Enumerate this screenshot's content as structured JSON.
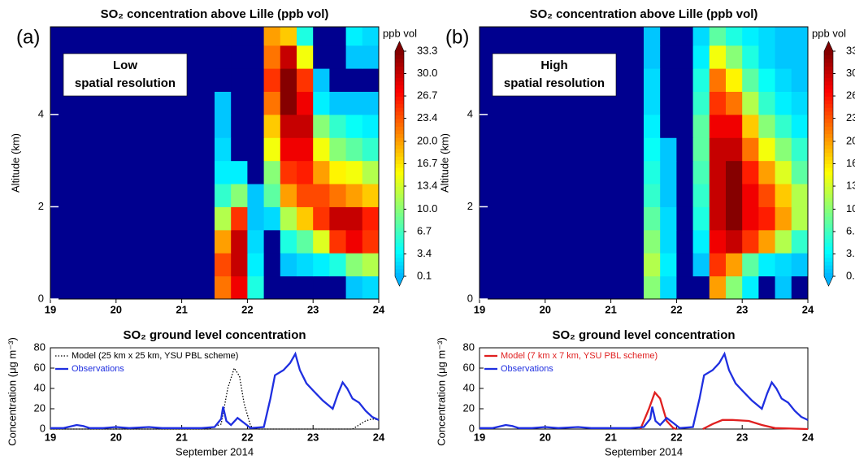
{
  "chart_data": [
    {
      "type": "heatmap",
      "title": "SO₂ concentration above Lille (ppb vol)",
      "panel_label": "(a)",
      "annotation": [
        "Low",
        "spatial resolution"
      ],
      "ylabel": "Altitude (km)",
      "x": [
        21.625,
        21.875,
        22.125,
        22.375,
        22.625,
        22.875,
        23.125,
        23.375,
        23.625,
        23.875
      ],
      "y": [
        0.25,
        0.75,
        1.25,
        1.75,
        2.25,
        2.75,
        3.25,
        3.75,
        4.25,
        4.75,
        5.25,
        5.75
      ],
      "z": [
        [
          22,
          28,
          5,
          0,
          0,
          0,
          0,
          0,
          1,
          2
        ],
        [
          24,
          30,
          3,
          0,
          1,
          2,
          3,
          5,
          10,
          12
        ],
        [
          20,
          30,
          2,
          0,
          5,
          8,
          14,
          25,
          28,
          25
        ],
        [
          12,
          25,
          1,
          2,
          12,
          18,
          25,
          30,
          30,
          26
        ],
        [
          6,
          10,
          1,
          8,
          20,
          24,
          24,
          22,
          20,
          18
        ],
        [
          3,
          3,
          0,
          10,
          25,
          26,
          20,
          16,
          15,
          12
        ],
        [
          2,
          0,
          0,
          15,
          28,
          28,
          15,
          10,
          8,
          6
        ],
        [
          1,
          0,
          0,
          18,
          30,
          30,
          10,
          6,
          4,
          3
        ],
        [
          1,
          0,
          0,
          22,
          33,
          28,
          3,
          1,
          1,
          1
        ],
        [
          0,
          0,
          0,
          25,
          33,
          25,
          1,
          0,
          0,
          0
        ],
        [
          0,
          0,
          0,
          22,
          30,
          15,
          0,
          0,
          1,
          1
        ],
        [
          0,
          0,
          0,
          20,
          18,
          5,
          0,
          0,
          3,
          2
        ]
      ],
      "xlim": [
        19,
        24
      ],
      "xticks": [
        19,
        20,
        21,
        22,
        23,
        24
      ],
      "ylim": [
        0,
        5.9
      ],
      "yticks": [
        0,
        2,
        4
      ],
      "colorbar": {
        "label": "ppb vol",
        "lim": [
          0.1,
          33.3
        ],
        "ticks": [
          0.1,
          3.4,
          6.7,
          {
            "value": 10,
            "label": "10.0"
          },
          13.4,
          16.7,
          {
            "value": 20,
            "label": "20.0"
          },
          23.4,
          26.7,
          {
            "value": 30,
            "label": "30.0"
          },
          33.3
        ]
      }
    },
    {
      "type": "line",
      "title": "SO₂ ground level concentration",
      "xlabel": "September 2014",
      "ylabel": "Concentration (μg m⁻³)",
      "xlim": [
        19,
        24
      ],
      "xticks": [
        19,
        20,
        21,
        22,
        23,
        24
      ],
      "ylim": [
        0,
        80
      ],
      "yticks": [
        0,
        20,
        40,
        60,
        80
      ],
      "legend": "upper left",
      "series": [
        {
          "name": "Model (25 km x 25 km, YSU PBL scheme)",
          "color": "#000000",
          "dash": "dotted",
          "x": [
            19.0,
            21.4,
            21.6,
            21.7,
            21.8,
            21.88,
            21.95,
            22.05,
            22.15,
            23.6,
            23.8,
            23.9,
            24.0
          ],
          "values": [
            0,
            0,
            5,
            40,
            60,
            52,
            25,
            3,
            0,
            0,
            8,
            10,
            9
          ]
        },
        {
          "name": "Observations",
          "color": "#1f2fe0",
          "x": [
            19.0,
            19.2,
            19.4,
            19.5,
            19.6,
            19.8,
            20.0,
            20.2,
            20.5,
            20.7,
            21.0,
            21.3,
            21.5,
            21.6,
            21.63,
            21.68,
            21.75,
            21.85,
            21.95,
            22.05,
            22.25,
            22.35,
            22.42,
            22.55,
            22.65,
            22.73,
            22.8,
            22.9,
            23.0,
            23.15,
            23.3,
            23.38,
            23.45,
            23.52,
            23.6,
            23.7,
            23.8,
            23.9,
            24.0
          ],
          "values": [
            1,
            1,
            4,
            3,
            1,
            1,
            2,
            1,
            2,
            1,
            1,
            1,
            2,
            10,
            22,
            8,
            4,
            11,
            6,
            1,
            2,
            30,
            53,
            58,
            65,
            74,
            58,
            45,
            38,
            28,
            20,
            35,
            46,
            40,
            30,
            26,
            18,
            12,
            9
          ]
        }
      ]
    },
    {
      "type": "heatmap",
      "title": "SO₂ concentration above Lille (ppb vol)",
      "panel_label": "(b)",
      "annotation": [
        "High",
        "spatial resolution"
      ],
      "ylabel": "Altitude (km)",
      "x": [
        21.625,
        21.875,
        22.125,
        22.375,
        22.625,
        22.875,
        23.125,
        23.375,
        23.625,
        23.875
      ],
      "y": [
        0.25,
        0.75,
        1.25,
        1.75,
        2.25,
        2.75,
        3.25,
        3.75,
        4.25,
        4.75,
        5.25,
        5.75
      ],
      "z": [
        [
          10,
          2,
          0,
          0,
          20,
          10,
          3,
          0,
          1,
          0
        ],
        [
          12,
          3,
          0,
          1,
          25,
          20,
          8,
          3,
          2,
          1
        ],
        [
          10,
          2,
          0,
          3,
          28,
          30,
          25,
          20,
          12,
          6
        ],
        [
          8,
          2,
          0,
          5,
          30,
          33,
          28,
          26,
          20,
          12
        ],
        [
          6,
          1,
          0,
          6,
          30,
          33,
          28,
          24,
          18,
          12
        ],
        [
          5,
          1,
          0,
          7,
          30,
          33,
          26,
          20,
          14,
          8
        ],
        [
          4,
          1,
          0,
          8,
          30,
          30,
          22,
          15,
          10,
          6
        ],
        [
          3,
          0,
          0,
          8,
          28,
          28,
          18,
          10,
          6,
          3
        ],
        [
          2,
          0,
          0,
          6,
          25,
          22,
          12,
          6,
          3,
          2
        ],
        [
          2,
          0,
          0,
          5,
          22,
          16,
          8,
          4,
          2,
          1
        ],
        [
          1,
          0,
          0,
          3,
          15,
          10,
          5,
          2,
          1,
          1
        ],
        [
          1,
          0,
          0,
          2,
          8,
          5,
          3,
          2,
          1,
          1
        ]
      ],
      "xlim": [
        19,
        24
      ],
      "xticks": [
        19,
        20,
        21,
        22,
        23,
        24
      ],
      "ylim": [
        0,
        5.9
      ],
      "yticks": [
        0,
        2,
        4
      ],
      "colorbar": {
        "label": "ppb vol",
        "lim": [
          0.1,
          33.3
        ],
        "ticks": [
          0.1,
          3.4,
          6.7,
          {
            "value": 10,
            "label": "10.0"
          },
          13.4,
          16.7,
          {
            "value": 20,
            "label": "20.0"
          },
          23.4,
          26.7,
          {
            "value": 30,
            "label": "30.0"
          },
          33.3
        ]
      }
    },
    {
      "type": "line",
      "title": "SO₂ ground level concentration",
      "xlabel": "September 2014",
      "ylabel": "Concentration (μg m⁻³)",
      "xlim": [
        19,
        24
      ],
      "xticks": [
        19,
        20,
        21,
        22,
        23,
        24
      ],
      "ylim": [
        0,
        80
      ],
      "yticks": [
        0,
        20,
        40,
        60,
        80
      ],
      "legend": "upper left",
      "series": [
        {
          "name": "Model (7 km x 7 km, YSU PBL scheme)",
          "color": "#e02020",
          "x": [
            21.45,
            21.58,
            21.67,
            21.75,
            21.85,
            21.95,
            22.0,
            22.2,
            22.4,
            22.55,
            22.7,
            22.85,
            23.1,
            23.3,
            23.5,
            24.0
          ],
          "values": [
            0,
            20,
            36,
            30,
            8,
            1,
            0,
            null,
            0,
            5,
            9,
            9,
            8,
            4,
            1,
            0
          ]
        },
        {
          "name": "Observations",
          "color": "#1f2fe0",
          "x": [
            19.0,
            19.2,
            19.4,
            19.5,
            19.6,
            19.8,
            20.0,
            20.2,
            20.5,
            20.7,
            21.0,
            21.3,
            21.5,
            21.6,
            21.63,
            21.68,
            21.75,
            21.85,
            21.95,
            22.05,
            22.25,
            22.35,
            22.42,
            22.55,
            22.65,
            22.73,
            22.8,
            22.9,
            23.0,
            23.15,
            23.3,
            23.38,
            23.45,
            23.52,
            23.6,
            23.7,
            23.8,
            23.9,
            24.0
          ],
          "values": [
            1,
            1,
            4,
            3,
            1,
            1,
            2,
            1,
            2,
            1,
            1,
            1,
            2,
            10,
            22,
            8,
            4,
            11,
            6,
            1,
            2,
            30,
            53,
            58,
            65,
            74,
            58,
            45,
            38,
            28,
            20,
            35,
            46,
            40,
            30,
            26,
            18,
            12,
            9
          ]
        }
      ]
    }
  ]
}
